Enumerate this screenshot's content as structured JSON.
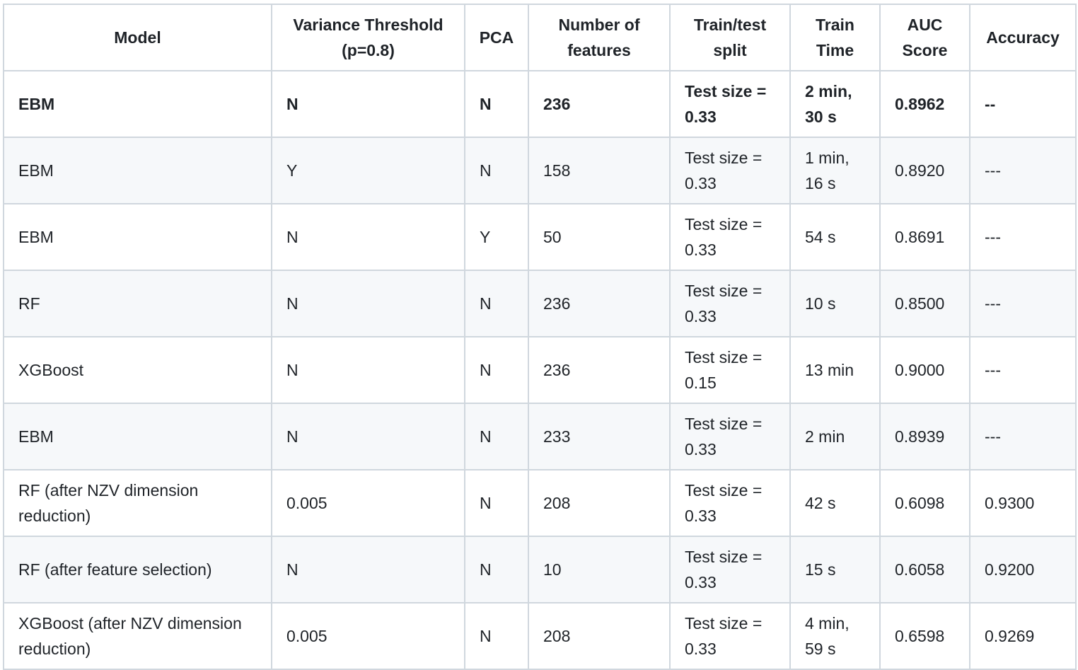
{
  "table": {
    "headers": [
      "Model",
      "Variance Threshold (p=0.8)",
      "PCA",
      "Number of features",
      "Train/test split",
      "Train Time",
      "AUC Score",
      "Accuracy"
    ],
    "rows": [
      {
        "bold": true,
        "cells": [
          "EBM",
          "N",
          "N",
          "236",
          "Test size = 0.33",
          "2 min, 30 s",
          "0.8962",
          "--"
        ]
      },
      {
        "bold": false,
        "cells": [
          "EBM",
          "Y",
          "N",
          "158",
          "Test size = 0.33",
          "1 min, 16 s",
          "0.8920",
          "---"
        ]
      },
      {
        "bold": false,
        "cells": [
          "EBM",
          "N",
          "Y",
          "50",
          "Test size = 0.33",
          "54 s",
          "0.8691",
          "---"
        ]
      },
      {
        "bold": false,
        "cells": [
          "RF",
          "N",
          "N",
          "236",
          "Test size = 0.33",
          "10 s",
          "0.8500",
          "---"
        ]
      },
      {
        "bold": false,
        "cells": [
          "XGBoost",
          "N",
          "N",
          "236",
          "Test size = 0.15",
          "13 min",
          "0.9000",
          "---"
        ]
      },
      {
        "bold": false,
        "cells": [
          "EBM",
          "N",
          "N",
          "233",
          "Test size = 0.33",
          "2 min",
          "0.8939",
          "---"
        ]
      },
      {
        "bold": false,
        "cells": [
          "RF (after NZV dimension reduction)",
          "0.005",
          "N",
          "208",
          "Test size = 0.33",
          "42 s",
          "0.6098",
          "0.9300"
        ]
      },
      {
        "bold": false,
        "cells": [
          "RF (after feature selection)",
          "N",
          "N",
          "10",
          "Test size = 0.33",
          "15 s",
          "0.6058",
          "0.9200"
        ]
      },
      {
        "bold": false,
        "cells": [
          "XGBoost (after NZV dimension reduction)",
          "0.005",
          "N",
          "208",
          "Test size = 0.33",
          "4 min, 59 s",
          "0.6598",
          "0.9269"
        ]
      }
    ]
  }
}
